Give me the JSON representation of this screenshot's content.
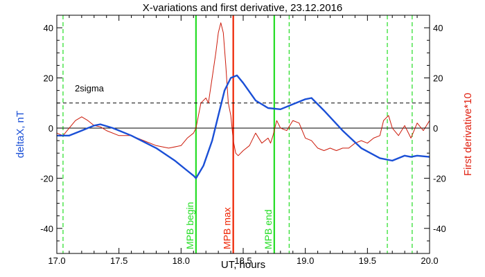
{
  "chart_data": {
    "type": "line",
    "title": "X-variations and first derivative, 23.12.2016",
    "xlabel": "UT, hours",
    "ylabel_left": "deltaX, nT",
    "ylabel_right": "First derivative*10",
    "xlim": [
      17.0,
      20.0
    ],
    "ylim": [
      -50,
      45
    ],
    "x_ticks": [
      {
        "v": 17.0,
        "label": "17.0"
      },
      {
        "v": 17.5,
        "label": "17.5"
      },
      {
        "v": 18.0,
        "label": "18.0"
      },
      {
        "v": 18.5,
        "label": "18.5"
      },
      {
        "v": 19.0,
        "label": "19.0"
      },
      {
        "v": 19.5,
        "label": "19.5"
      },
      {
        "v": 20.0,
        "label": "20.0"
      }
    ],
    "y_ticks": [
      {
        "v": 40,
        "label": "40"
      },
      {
        "v": 20,
        "label": "20"
      },
      {
        "v": 0,
        "label": "0"
      },
      {
        "v": -20,
        "label": "-20"
      },
      {
        "v": -40,
        "label": "-40"
      }
    ],
    "colors": {
      "deltax": "#1a4fd6",
      "derivative": "#cc1a0a",
      "marker_green": "#22dd22",
      "marker_red": "#ee2200",
      "right_axis_label": "#e02010",
      "left_axis_label": "#1a4fd6"
    },
    "series": [
      {
        "name": "deltaX, nT",
        "color": "#1a4fd6",
        "x": [
          17.0,
          17.1,
          17.2,
          17.3,
          17.35,
          17.45,
          17.6,
          17.8,
          17.95,
          18.05,
          18.1,
          18.12,
          18.18,
          18.25,
          18.3,
          18.35,
          18.4,
          18.45,
          18.5,
          18.6,
          18.7,
          18.8,
          18.9,
          19.0,
          19.05,
          19.15,
          19.3,
          19.45,
          19.6,
          19.7,
          19.8,
          19.85,
          19.9,
          20.0
        ],
        "values": [
          -3,
          -3,
          -1,
          1,
          1.5,
          0,
          -3,
          -8,
          -13,
          -17,
          -19,
          -20,
          -15,
          -5,
          5,
          15,
          20,
          21,
          18,
          11,
          8,
          7.5,
          9.5,
          11.5,
          12,
          7,
          -1,
          -8,
          -12,
          -13,
          -11,
          -11.5,
          -11,
          -11.5
        ]
      },
      {
        "name": "First derivative*10",
        "color": "#cc1a0a",
        "x": [
          17.0,
          17.05,
          17.1,
          17.15,
          17.2,
          17.25,
          17.3,
          17.35,
          17.4,
          17.5,
          17.6,
          17.7,
          17.8,
          17.9,
          18.0,
          18.05,
          18.1,
          18.12,
          18.14,
          18.16,
          18.2,
          18.22,
          18.25,
          18.28,
          18.3,
          18.32,
          18.34,
          18.36,
          18.38,
          18.4,
          18.42,
          18.44,
          18.46,
          18.5,
          18.55,
          18.6,
          18.65,
          18.7,
          18.72,
          18.74,
          18.77,
          18.8,
          18.85,
          18.9,
          18.95,
          19.0,
          19.05,
          19.1,
          19.15,
          19.2,
          19.25,
          19.3,
          19.35,
          19.4,
          19.45,
          19.5,
          19.55,
          19.6,
          19.63,
          19.67,
          19.7,
          19.75,
          19.8,
          19.85,
          19.9,
          19.95,
          20.0
        ],
        "values": [
          -2,
          -3,
          0,
          3,
          4.5,
          3,
          1,
          0.5,
          -1,
          -3,
          -3,
          -5,
          -7,
          -8,
          -7,
          -4,
          -2,
          0,
          5,
          10,
          12,
          10,
          20,
          30,
          38,
          42,
          38,
          25,
          10,
          5,
          -5,
          -10,
          -11,
          -9,
          -7,
          -2,
          -6,
          -4,
          -6,
          -3,
          3,
          0,
          -1,
          3,
          2,
          -4,
          -5,
          -8,
          -9,
          -8,
          -9,
          -8,
          -8,
          -6,
          -5,
          -6,
          -4,
          -3,
          3,
          5,
          0,
          -3,
          1,
          -4,
          2,
          -1,
          3
        ]
      }
    ],
    "reference_lines": [
      {
        "y": 10,
        "label": "2sigma",
        "style": "dashed"
      },
      {
        "y": 0,
        "style": "solid"
      }
    ],
    "vertical_markers": [
      {
        "x": 17.05,
        "style": "dashed",
        "color": "#22dd22",
        "label": ""
      },
      {
        "x": 18.12,
        "style": "solid",
        "color": "#22dd22",
        "label": "MPB begin"
      },
      {
        "x": 18.42,
        "style": "solid",
        "color": "#ee2200",
        "label": "MPB max"
      },
      {
        "x": 18.75,
        "style": "solid",
        "color": "#22dd22",
        "label": "MPB end"
      },
      {
        "x": 18.87,
        "style": "dashed",
        "color": "#22dd22",
        "label": ""
      },
      {
        "x": 19.66,
        "style": "dashed",
        "color": "#22dd22",
        "label": ""
      },
      {
        "x": 19.86,
        "style": "dashed",
        "color": "#22dd22",
        "label": ""
      }
    ],
    "grid": false,
    "legend": "none"
  }
}
